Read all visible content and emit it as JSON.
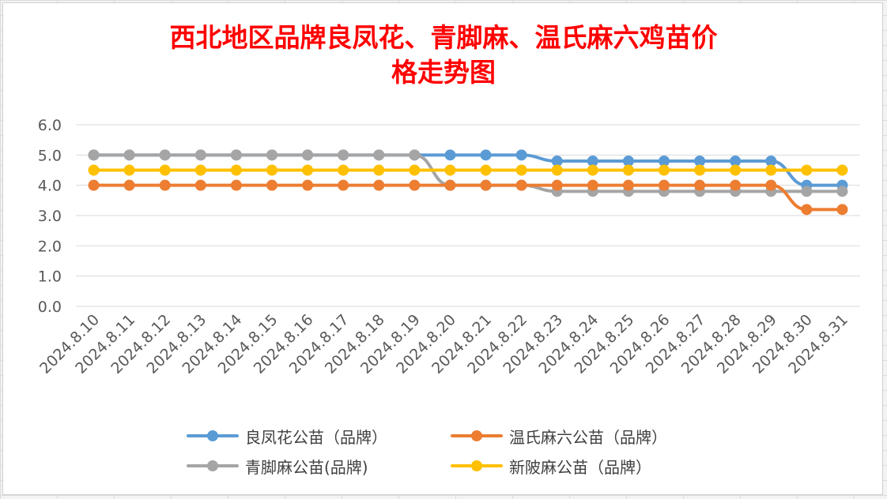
{
  "chart_data": {
    "type": "line",
    "title_line1": "西北地区品牌良凤花、青脚麻、温氏麻六鸡苗价",
    "title_line2": "格走势图",
    "categories": [
      "2024.8.10",
      "2024.8.11",
      "2024.8.12",
      "2024.8.13",
      "2024.8.14",
      "2024.8.15",
      "2024.8.16",
      "2024.8.17",
      "2024.8.18",
      "2024.8.19",
      "2024.8.20",
      "2024.8.21",
      "2024.8.22",
      "2024.8.23",
      "2024.8.24",
      "2024.8.25",
      "2024.8.26",
      "2024.8.27",
      "2024.8.28",
      "2024.8.29",
      "2024.8.30",
      "2024.8.31"
    ],
    "ylim": [
      0,
      6
    ],
    "yticks": [
      "0.0",
      "1.0",
      "2.0",
      "3.0",
      "4.0",
      "5.0",
      "6.0"
    ],
    "grid": true,
    "legend_position": "bottom",
    "series": [
      {
        "name": "良凤花公苗（品牌）",
        "color": "#5b9bd5",
        "values": [
          5.0,
          5.0,
          5.0,
          5.0,
          5.0,
          5.0,
          5.0,
          5.0,
          5.0,
          5.0,
          5.0,
          5.0,
          5.0,
          4.8,
          4.8,
          4.8,
          4.8,
          4.8,
          4.8,
          4.8,
          4.0,
          4.0
        ]
      },
      {
        "name": "温氏麻六公苗（品牌）",
        "color": "#ed7d31",
        "values": [
          4.0,
          4.0,
          4.0,
          4.0,
          4.0,
          4.0,
          4.0,
          4.0,
          4.0,
          4.0,
          4.0,
          4.0,
          4.0,
          4.0,
          4.0,
          4.0,
          4.0,
          4.0,
          4.0,
          4.0,
          3.2,
          3.2
        ]
      },
      {
        "name": "青脚麻公苗(品牌)",
        "color": "#a5a5a5",
        "values": [
          5.0,
          5.0,
          5.0,
          5.0,
          5.0,
          5.0,
          5.0,
          5.0,
          5.0,
          5.0,
          4.0,
          4.0,
          4.0,
          3.8,
          3.8,
          3.8,
          3.8,
          3.8,
          3.8,
          3.8,
          3.8,
          3.8
        ]
      },
      {
        "name": "新陂麻公苗（品牌）",
        "color": "#ffc000",
        "values": [
          4.5,
          4.5,
          4.5,
          4.5,
          4.5,
          4.5,
          4.5,
          4.5,
          4.5,
          4.5,
          4.5,
          4.5,
          4.5,
          4.5,
          4.5,
          4.5,
          4.5,
          4.5,
          4.5,
          4.5,
          4.5,
          4.5
        ]
      }
    ]
  }
}
